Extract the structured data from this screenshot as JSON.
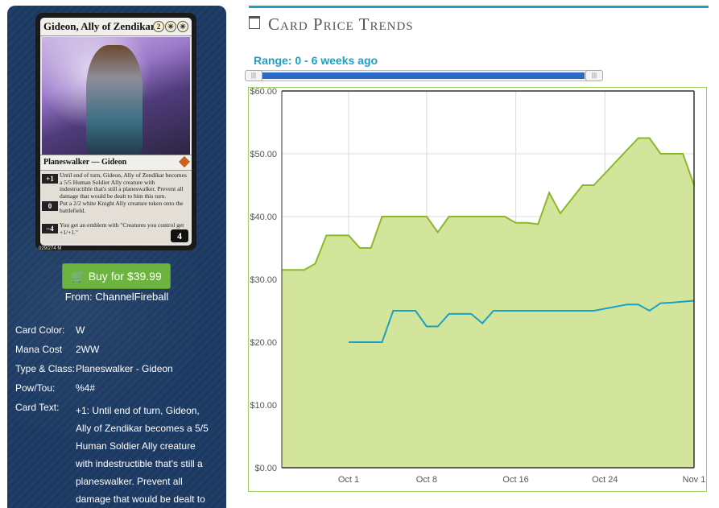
{
  "card": {
    "name": "Gideon, Ally of Zendikar",
    "mana_symbols": [
      "2",
      "✳",
      "✳"
    ],
    "type_line": "Planeswalker — Gideon",
    "abilities": [
      {
        "cost": "+1",
        "text": "Until end of turn, Gideon, Ally of Zendikar becomes a 5/5 Human Soldier Ally creature with indestructible that's still a planeswalker. Prevent all damage that would be dealt to him this turn."
      },
      {
        "cost": "0",
        "text": "Put a 2/2 white Knight Ally creature token onto the battlefield."
      },
      {
        "cost": "−4",
        "text": "You get an emblem with \"Creatures you control get +1/+1.\""
      }
    ],
    "loyalty": "4",
    "collector_number": "029/274 M"
  },
  "buy": {
    "label": "Buy for $39.99",
    "from": "From: ChannelFireball",
    "icon": "cart-icon"
  },
  "details": {
    "color_label": "Card Color:",
    "color": "W",
    "mana_label": "Mana Cost",
    "mana": "2WW",
    "type_label": "Type & Class:",
    "type": "Planeswalker - Gideon",
    "pt_label": "Pow/Tou:",
    "pt": "%4#",
    "text_label": "Card Text:",
    "text": "+1: Until end of turn, Gideon, Ally of Zendikar becomes a 5/5 Human Soldier Ally creature with indestructible that's still a planeswalker. Prevent all damage that would be dealt to"
  },
  "panel": {
    "title": "Card Price Trends",
    "icon": "calendar-icon",
    "range_label": "Range: 0 - 6 weeks ago",
    "slider": {
      "min_weeks": 0,
      "max_weeks": 6,
      "handle_symbol": "|||"
    }
  },
  "colors": {
    "accent": "#1ba1c6",
    "series_green": "#8cb82a",
    "area_fill": "#d3e59a",
    "series_blue": "#1ba1c6",
    "buy": "#6db33f"
  },
  "chart_data": {
    "type": "area",
    "x_ticks": [
      "Oct 1",
      "Oct 8",
      "Oct 16",
      "Oct 24",
      "Nov 1"
    ],
    "x_range": [
      "Sep 25",
      "Nov 1"
    ],
    "ylim": [
      0,
      60
    ],
    "y_ticks": [
      "$0.00",
      "$10.00",
      "$20.00",
      "$30.00",
      "$40.00",
      "$50.00",
      "$60.00"
    ],
    "grid": true,
    "series": [
      {
        "type": "area",
        "points": [
          [
            "Sep 25",
            31.5
          ],
          [
            "Sep 27",
            31.5
          ],
          [
            "Sep 28",
            32.5
          ],
          [
            "Sep 29",
            37
          ],
          [
            "Oct 1",
            37
          ],
          [
            "Oct 2",
            35
          ],
          [
            "Oct 3",
            35
          ],
          [
            "Oct 4",
            40
          ],
          [
            "Oct 8",
            40
          ],
          [
            "Oct 9",
            37.5
          ],
          [
            "Oct 10",
            40
          ],
          [
            "Oct 15",
            40
          ],
          [
            "Oct 16",
            39
          ],
          [
            "Oct 17",
            39
          ],
          [
            "Oct 18",
            38.8
          ],
          [
            "Oct 19",
            43.8
          ],
          [
            "Oct 20",
            40.5
          ],
          [
            "Oct 22",
            45
          ],
          [
            "Oct 23",
            45
          ],
          [
            "Oct 27",
            52.5
          ],
          [
            "Oct 28",
            52.5
          ],
          [
            "Oct 29",
            50
          ],
          [
            "Oct 31",
            50
          ],
          [
            "Nov 1",
            45
          ]
        ]
      },
      {
        "type": "line",
        "points": [
          [
            "Oct 1",
            20
          ],
          [
            "Oct 4",
            20
          ],
          [
            "Oct 5",
            25
          ],
          [
            "Oct 7",
            25
          ],
          [
            "Oct 8",
            22.5
          ],
          [
            "Oct 9",
            22.5
          ],
          [
            "Oct 10",
            24.5
          ],
          [
            "Oct 12",
            24.5
          ],
          [
            "Oct 13",
            23
          ],
          [
            "Oct 14",
            25
          ],
          [
            "Oct 23",
            25
          ],
          [
            "Oct 26",
            26
          ],
          [
            "Oct 27",
            26
          ],
          [
            "Oct 28",
            25
          ],
          [
            "Oct 29",
            26.2
          ],
          [
            "Oct 30",
            26.3
          ],
          [
            "Nov 1",
            26.6
          ]
        ]
      }
    ]
  }
}
